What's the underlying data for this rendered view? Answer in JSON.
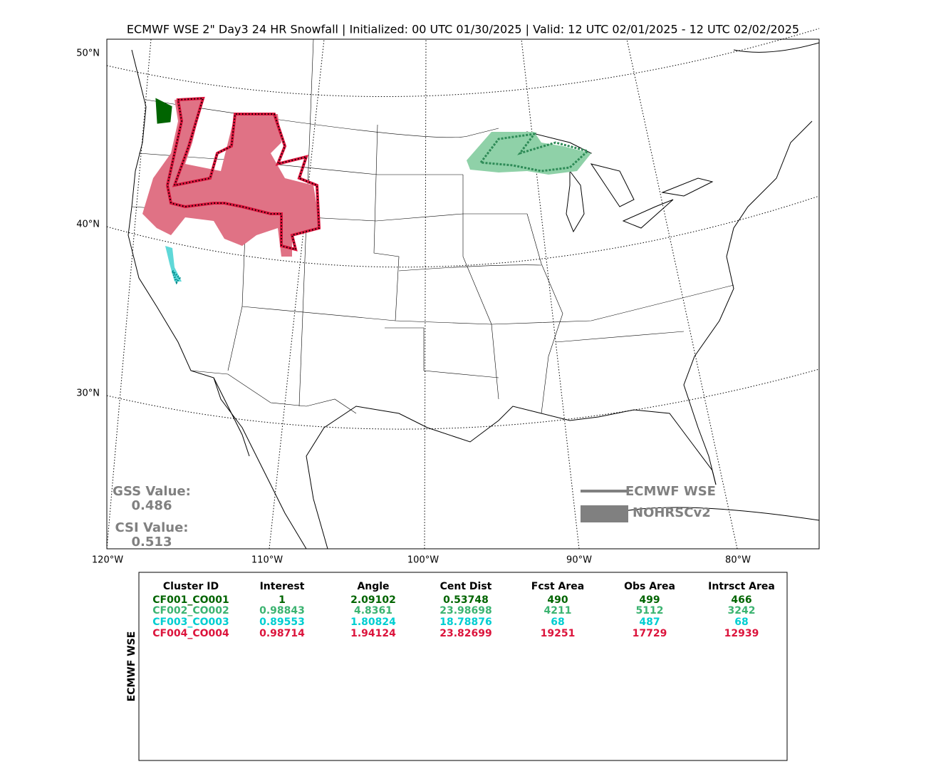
{
  "header": {
    "title": "ECMWF WSE 2\" Day3 24 HR Snowfall | Initialized: 00 UTC 01/30/2025 | Valid: 12 UTC 02/01/2025 - 12 UTC 02/02/2025"
  },
  "map": {
    "lat_labels": [
      "50°N",
      "40°N",
      "30°N"
    ],
    "lon_labels": [
      "120°W",
      "110°W",
      "100°W",
      "90°W",
      "80°W"
    ],
    "gss_label": "GSS Value:",
    "gss_value": "0.486",
    "csi_label": "CSI Value:",
    "csi_value": "0.513",
    "legend": [
      {
        "label": "ECMWF WSE",
        "color": "#808080"
      },
      {
        "label": "NOHRSCv2",
        "color": "#808080"
      }
    ]
  },
  "table": {
    "side_label": "ECMWF WSE",
    "columns": [
      "Cluster ID",
      "Interest",
      "Angle",
      "Cent Dist",
      "Fcst Area",
      "Obs Area",
      "Intrsct Area"
    ],
    "rows": [
      {
        "color": "#006400",
        "cells": [
          "CF001_CO001",
          "1",
          "2.09102",
          "0.53748",
          "490",
          "499",
          "466"
        ]
      },
      {
        "color": "#3cb371",
        "cells": [
          "CF002_CO002",
          "0.98843",
          "4.8361",
          "23.98698",
          "4211",
          "5112",
          "3242"
        ]
      },
      {
        "color": "#00ced1",
        "cells": [
          "CF003_CO003",
          "0.89553",
          "1.80824",
          "18.78876",
          "68",
          "487",
          "68"
        ]
      },
      {
        "color": "#dc143c",
        "cells": [
          "CF004_CO004",
          "0.98714",
          "1.94124",
          "23.82699",
          "19251",
          "17729",
          "12939"
        ]
      }
    ]
  }
}
